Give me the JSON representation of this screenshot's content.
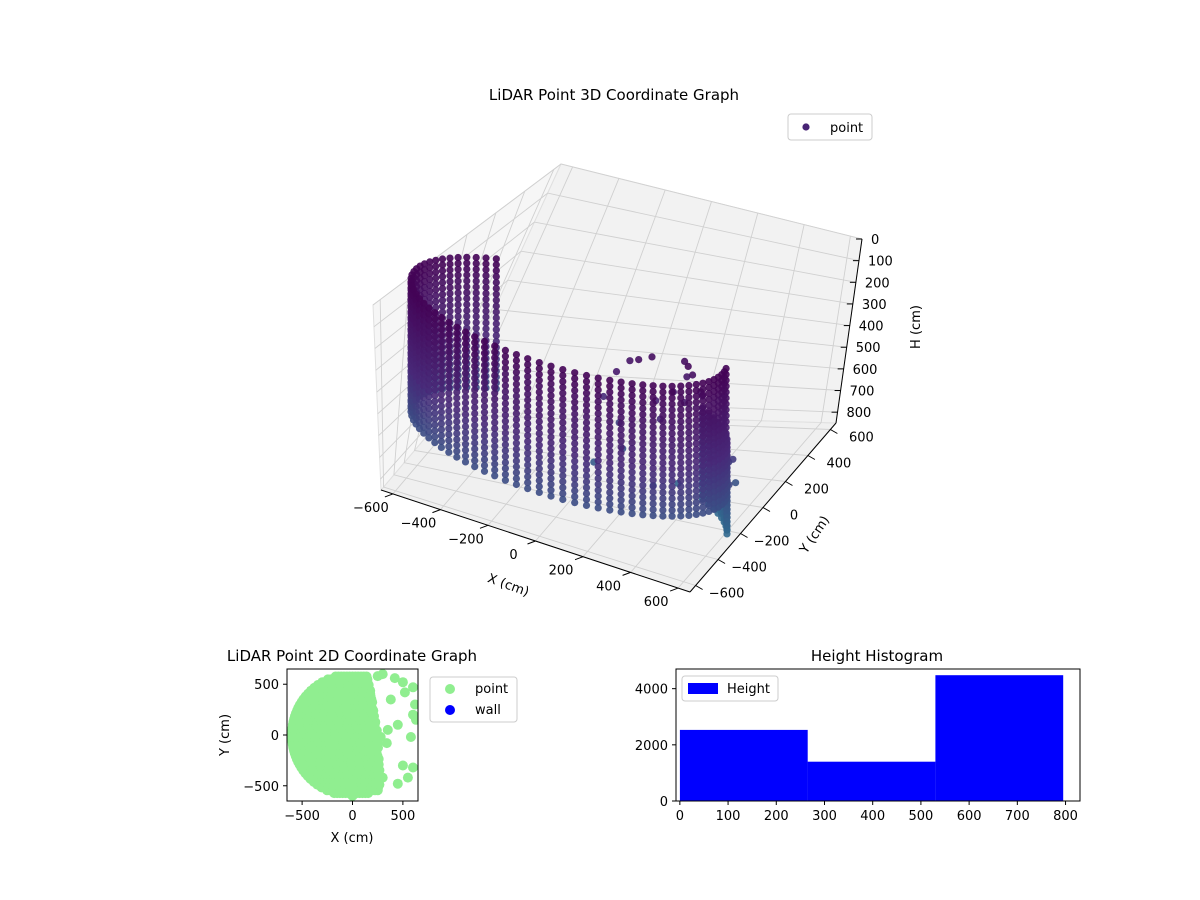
{
  "chart_data": [
    {
      "type": "scatter",
      "projection": "3d",
      "title": "LiDAR Point 3D Coordinate Graph",
      "xlabel": "X (cm)",
      "ylabel": "Y (cm)",
      "zlabel": "H (cm)",
      "xlim": [
        -650,
        650
      ],
      "ylim": [
        -650,
        650
      ],
      "zlim": [
        850,
        0
      ],
      "z_inverted": true,
      "x_ticks": [
        -600,
        -400,
        -200,
        0,
        200,
        400,
        600
      ],
      "y_ticks": [
        -600,
        -400,
        -200,
        0,
        200,
        400,
        600
      ],
      "z_ticks": [
        0,
        100,
        200,
        300,
        400,
        500,
        600,
        700,
        800
      ],
      "grid": true,
      "legend": {
        "position": "upper-right",
        "entries": [
          "point"
        ]
      },
      "series": [
        {
          "name": "point",
          "colormap": "viridis-dark",
          "color": "#482475",
          "surface": {
            "shape": "partial-cylinder",
            "radius": 650,
            "angle_start_deg": 0,
            "angle_end_deg": 240,
            "angle_end_bottom_deg": 275,
            "h_min": 20,
            "h_max": 620,
            "h_max_bottom": 800
          },
          "points": [
            [
              480,
              100,
              80
            ],
            [
              430,
              260,
              120
            ],
            [
              470,
              230,
              160
            ],
            [
              520,
              160,
              200
            ],
            [
              500,
              280,
              260
            ],
            [
              560,
              190,
              320
            ],
            [
              540,
              300,
              380
            ],
            [
              600,
              240,
              430
            ],
            [
              580,
              90,
              470
            ],
            [
              620,
              320,
              520
            ],
            [
              590,
              380,
              560
            ],
            [
              630,
              200,
              600
            ],
            [
              610,
              420,
              660
            ],
            [
              580,
              300,
              690
            ],
            [
              500,
              430,
              740
            ],
            [
              350,
              500,
              780
            ],
            [
              250,
              480,
              820
            ],
            [
              120,
              420,
              560
            ],
            [
              80,
              300,
              420
            ],
            [
              150,
              350,
              650
            ],
            [
              50,
              250,
              720
            ],
            [
              300,
              300,
              360
            ],
            [
              370,
              320,
              300
            ],
            [
              420,
              350,
              220
            ],
            [
              460,
              120,
              260
            ],
            [
              250,
              200,
              160
            ],
            [
              310,
              180,
              120
            ],
            [
              200,
              260,
              200
            ],
            [
              150,
              230,
              260
            ],
            [
              330,
              250,
              420
            ]
          ]
        }
      ]
    },
    {
      "type": "scatter",
      "title": "LiDAR Point 2D Coordinate Graph",
      "xlabel": "X (cm)",
      "ylabel": "Y (cm)",
      "xlim": [
        -650,
        650
      ],
      "ylim": [
        -650,
        650
      ],
      "x_ticks": [
        -500,
        0,
        500
      ],
      "y_ticks": [
        -500,
        0,
        500
      ],
      "legend": {
        "position": "outside-right",
        "entries": [
          "point",
          "wall"
        ]
      },
      "series": [
        {
          "name": "point",
          "color": "#90ee90",
          "disk": {
            "radius": 600,
            "chord_top_x": 150,
            "chord_mid_x": 250,
            "chord_bottom_x": 280
          },
          "points": [
            [
              420,
              560
            ],
            [
              500,
              520
            ],
            [
              600,
              470
            ],
            [
              520,
              420
            ],
            [
              620,
              300
            ],
            [
              600,
              200
            ],
            [
              450,
              100
            ],
            [
              350,
              50
            ],
            [
              280,
              -20
            ],
            [
              340,
              -80
            ],
            [
              600,
              -320
            ],
            [
              550,
              -420
            ],
            [
              450,
              -480
            ],
            [
              300,
              -420
            ],
            [
              380,
              350
            ],
            [
              250,
              580
            ],
            [
              300,
              600
            ],
            [
              580,
              -20
            ],
            [
              630,
              150
            ],
            [
              500,
              -300
            ]
          ]
        },
        {
          "name": "wall",
          "color": "#0000ff",
          "points": []
        }
      ]
    },
    {
      "type": "bar",
      "subtype": "histogram",
      "title": "Height Histogram",
      "xlim": [
        -8,
        830
      ],
      "ylim": [
        0,
        4700
      ],
      "x_ticks": [
        0,
        100,
        200,
        300,
        400,
        500,
        600,
        700,
        800
      ],
      "y_ticks": [
        0,
        2000,
        4000
      ],
      "legend": {
        "position": "upper-left",
        "entries": [
          "Height"
        ]
      },
      "series": [
        {
          "name": "Height",
          "color": "#0000ff",
          "bins": [
            {
              "start": 0,
              "end": 265,
              "count": 2530
            },
            {
              "start": 265,
              "end": 530,
              "count": 1400
            },
            {
              "start": 530,
              "end": 795,
              "count": 4480
            }
          ]
        }
      ]
    }
  ]
}
